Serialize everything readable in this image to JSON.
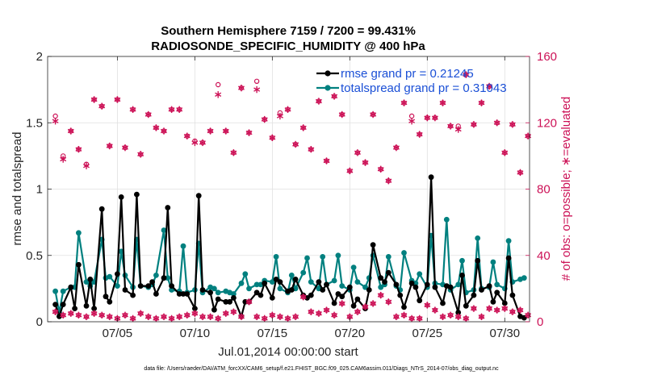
{
  "chart_data": {
    "type": "line",
    "title_line1": "Southern Hemisphere 7159 / 7200 = 99.431%",
    "title_line2": "RADIOSONDE_SPECIFIC_HUMIDITY @ 400 hPa",
    "xlabel": "Jul.01,2014 00:00:00 start",
    "ylabel_left": "rmse and totalspread",
    "ylabel_right": "# of obs: o=possible; ∗=evaluated",
    "footer": "data file: /Users/raeder/DAI/ATM_forcXX/CAM6_setup/f.e21.FHIST_BGC.f09_025.CAM6assim.011/Diags_NTrS_2014-07/obs_diag_output.nc",
    "xlim": [
      0.5,
      31.6
    ],
    "ylim_left": [
      0,
      2
    ],
    "ylim_right": [
      0,
      160
    ],
    "x_ticks": [
      5,
      10,
      15,
      20,
      25,
      30
    ],
    "x_tick_labels": [
      "07/05",
      "07/10",
      "07/15",
      "07/20",
      "07/25",
      "07/30"
    ],
    "y_ticks_left": [
      0,
      0.5,
      1,
      1.5,
      2
    ],
    "y_tick_labels_left": [
      "0",
      "0.5",
      "1",
      "1.5",
      "2"
    ],
    "y_ticks_right": [
      0,
      40,
      80,
      120,
      160
    ],
    "y_tick_labels_right": [
      "0",
      "40",
      "80",
      "120",
      "160"
    ],
    "grid": true,
    "legend_location": "top-right",
    "colors": {
      "rmse": "#000000",
      "spread": "#00807f",
      "obs": "#cc1156",
      "legend_text": "#1a4fd6"
    },
    "x": [
      1.0,
      1.25,
      1.5,
      2.0,
      2.25,
      2.5,
      3.0,
      3.25,
      3.5,
      4.0,
      4.25,
      4.5,
      5.0,
      5.25,
      5.5,
      6.0,
      6.25,
      6.5,
      7.0,
      7.25,
      7.5,
      8.0,
      8.25,
      8.5,
      9.0,
      9.25,
      9.5,
      10.0,
      10.25,
      10.5,
      11.0,
      11.25,
      11.5,
      12.0,
      12.25,
      12.5,
      13.0,
      13.25,
      13.5,
      14.0,
      14.25,
      14.5,
      15.0,
      15.25,
      15.5,
      16.0,
      16.25,
      16.5,
      17.0,
      17.25,
      17.5,
      18.0,
      18.25,
      18.5,
      19.0,
      19.25,
      19.5,
      20.0,
      20.25,
      20.5,
      21.0,
      21.25,
      21.5,
      22.0,
      22.25,
      22.5,
      23.0,
      23.25,
      23.5,
      24.0,
      24.25,
      24.5,
      25.0,
      25.25,
      25.5,
      26.0,
      26.25,
      26.5,
      27.0,
      27.25,
      27.5,
      28.0,
      28.25,
      28.5,
      29.0,
      29.25,
      29.5,
      30.0,
      30.25,
      30.5,
      31.0,
      31.25
    ],
    "series": [
      {
        "name": "rmse grand pr = 0.21245",
        "values": [
          0.13,
          0.04,
          0.13,
          0.26,
          0.1,
          0.43,
          0.12,
          0.32,
          0.1,
          0.85,
          0.19,
          0.15,
          0.36,
          0.94,
          0.24,
          0.2,
          0.96,
          0.27,
          0.27,
          0.3,
          0.21,
          0.33,
          0.86,
          0.27,
          0.21,
          0.21,
          0.21,
          0.1,
          0.95,
          0.24,
          0.22,
          0.09,
          0.17,
          0.15,
          0.15,
          0.18,
          0.04,
          0.15,
          0.15,
          0.22,
          0.2,
          0.29,
          0.18,
          0.32,
          0.3,
          0.23,
          0.24,
          0.32,
          0.2,
          0.18,
          0.2,
          0.3,
          0.24,
          0.28,
          0.14,
          0.21,
          0.19,
          0.26,
          0.12,
          0.17,
          0.1,
          0.24,
          0.58,
          0.33,
          0.3,
          0.37,
          0.28,
          0.2,
          0.11,
          0.29,
          0.26,
          0.16,
          0.28,
          1.09,
          0.26,
          0.14,
          0.27,
          0.26,
          0.07,
          0.35,
          0.12,
          0.2,
          0.46,
          0.24,
          0.27,
          0.15,
          0.22,
          0.14,
          0.48,
          0.2,
          0.04,
          0.03
        ]
      },
      {
        "name": "totalspread grand pr = 0.31043",
        "values": [
          0.23,
          0.07,
          0.23,
          0.26,
          0.26,
          0.67,
          0.3,
          0.27,
          0.3,
          0.62,
          0.33,
          0.34,
          0.27,
          0.53,
          0.35,
          0.26,
          0.62,
          0.27,
          0.26,
          0.28,
          0.35,
          0.69,
          0.33,
          0.24,
          0.23,
          0.57,
          0.22,
          0.24,
          0.59,
          0.22,
          0.26,
          0.25,
          0.22,
          0.23,
          0.22,
          0.21,
          0.29,
          0.36,
          0.25,
          0.28,
          0.28,
          0.31,
          0.3,
          0.49,
          0.25,
          0.22,
          0.35,
          0.25,
          0.37,
          0.48,
          0.3,
          0.25,
          0.49,
          0.28,
          0.31,
          0.5,
          0.27,
          0.24,
          0.41,
          0.3,
          0.26,
          0.33,
          0.5,
          0.26,
          0.28,
          0.49,
          0.27,
          0.24,
          0.52,
          0.31,
          0.29,
          0.36,
          0.26,
          0.65,
          0.29,
          0.28,
          0.77,
          0.24,
          0.28,
          0.46,
          0.22,
          0.24,
          0.63,
          0.25,
          0.26,
          0.45,
          0.28,
          0.25,
          0.61,
          0.3,
          0.32,
          0.33
        ]
      }
    ],
    "obs_days": [
      1.0,
      1.5,
      2.0,
      2.5,
      3.0,
      3.5,
      4.0,
      4.5,
      5.0,
      5.5,
      6.0,
      6.5,
      7.0,
      7.5,
      8.0,
      8.5,
      9.0,
      9.5,
      10.0,
      10.5,
      11.0,
      11.5,
      12.0,
      12.5,
      13.0,
      13.5,
      14.0,
      14.5,
      15.0,
      15.5,
      16.0,
      16.5,
      17.0,
      17.5,
      18.0,
      18.5,
      19.0,
      19.5,
      20.0,
      20.5,
      21.0,
      21.5,
      22.0,
      22.5,
      23.0,
      23.5,
      24.0,
      24.5,
      25.0,
      25.5,
      26.0,
      26.5,
      27.0,
      27.5,
      28.0,
      28.5,
      29.0,
      29.5,
      30.0,
      30.5,
      31.0,
      31.5
    ],
    "obs_possible": [
      124,
      100,
      115,
      104,
      95,
      134,
      130,
      106,
      134,
      105,
      128,
      101,
      125,
      117,
      115,
      128,
      128,
      112,
      109,
      108,
      115,
      143,
      115,
      102,
      141,
      114,
      145,
      122,
      111,
      126,
      128,
      107,
      117,
      104,
      133,
      97,
      136,
      125,
      91,
      102,
      96,
      125,
      92,
      85,
      105,
      132,
      124,
      113,
      123,
      123,
      132,
      118,
      118,
      149,
      119,
      132,
      142,
      120,
      102,
      119,
      90,
      112
    ],
    "obs_evaluated": [
      121,
      98,
      115,
      104,
      94,
      134,
      130,
      106,
      134,
      105,
      128,
      101,
      125,
      117,
      115,
      128,
      128,
      112,
      108,
      108,
      115,
      137,
      115,
      102,
      141,
      114,
      140,
      122,
      111,
      124,
      128,
      107,
      117,
      104,
      133,
      97,
      136,
      125,
      91,
      102,
      96,
      125,
      92,
      85,
      105,
      132,
      121,
      113,
      123,
      123,
      132,
      118,
      116,
      149,
      119,
      132,
      142,
      120,
      102,
      119,
      90,
      112
    ],
    "obs_low_possible": [
      6,
      4,
      5,
      4,
      3,
      5,
      4,
      3,
      2,
      4,
      2,
      5,
      3,
      2,
      3,
      2,
      3,
      4,
      5,
      3,
      3,
      2,
      5,
      6,
      3,
      12,
      3,
      2,
      4,
      3,
      2,
      3,
      15,
      6,
      5,
      7,
      4,
      11,
      3,
      6,
      9,
      11,
      16,
      12,
      3,
      4,
      2,
      2,
      10,
      7,
      3,
      4,
      3,
      2,
      8,
      3,
      8,
      7,
      8,
      6,
      7,
      4
    ],
    "obs_low_evaluated": [
      6,
      4,
      5,
      4,
      3,
      5,
      4,
      3,
      2,
      4,
      2,
      5,
      3,
      2,
      3,
      2,
      3,
      4,
      5,
      3,
      3,
      2,
      5,
      6,
      3,
      12,
      3,
      2,
      4,
      3,
      2,
      3,
      15,
      6,
      5,
      7,
      4,
      11,
      3,
      6,
      9,
      11,
      16,
      12,
      3,
      4,
      2,
      2,
      10,
      7,
      3,
      4,
      3,
      2,
      8,
      3,
      8,
      7,
      8,
      6,
      7,
      4
    ]
  }
}
